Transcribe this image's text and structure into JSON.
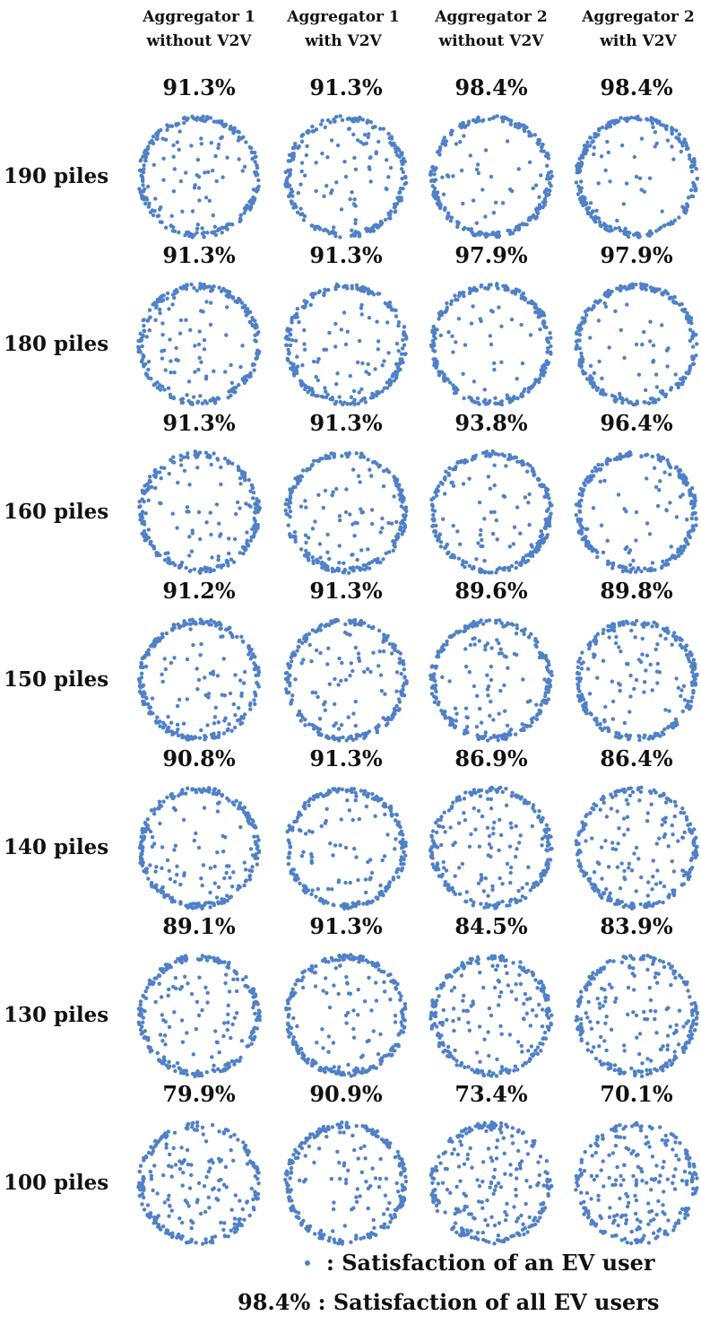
{
  "chart_data": {
    "type": "scatter",
    "columns": [
      {
        "line1": "Aggregator 1",
        "line2": "without V2V"
      },
      {
        "line1": "Aggregator 1",
        "line2": "with V2V"
      },
      {
        "line1": "Aggregator 2",
        "line2": "without V2V"
      },
      {
        "line1": "Aggregator 2",
        "line2": "with V2V"
      }
    ],
    "rows": [
      {
        "label": "190 piles",
        "values": [
          "91.3%",
          "91.3%",
          "98.4%",
          "98.4%"
        ]
      },
      {
        "label": "180 piles",
        "values": [
          "91.3%",
          "91.3%",
          "97.9%",
          "97.9%"
        ]
      },
      {
        "label": "160 piles",
        "values": [
          "91.3%",
          "91.3%",
          "93.8%",
          "96.4%"
        ]
      },
      {
        "label": "150 piles",
        "values": [
          "91.2%",
          "91.3%",
          "89.6%",
          "89.8%"
        ]
      },
      {
        "label": "140 piles",
        "values": [
          "90.8%",
          "91.3%",
          "86.9%",
          "86.4%"
        ]
      },
      {
        "label": "130 piles",
        "values": [
          "89.1%",
          "91.3%",
          "84.5%",
          "83.9%"
        ]
      },
      {
        "label": "100 piles",
        "values": [
          "79.9%",
          "90.9%",
          "73.4%",
          "70.1%"
        ]
      }
    ],
    "point_color": "#4f81c7",
    "legend": {
      "dot_text": ": Satisfaction of an EV user",
      "pct_sample": "98.4%",
      "pct_text": ": Satisfaction of all EV users"
    }
  }
}
